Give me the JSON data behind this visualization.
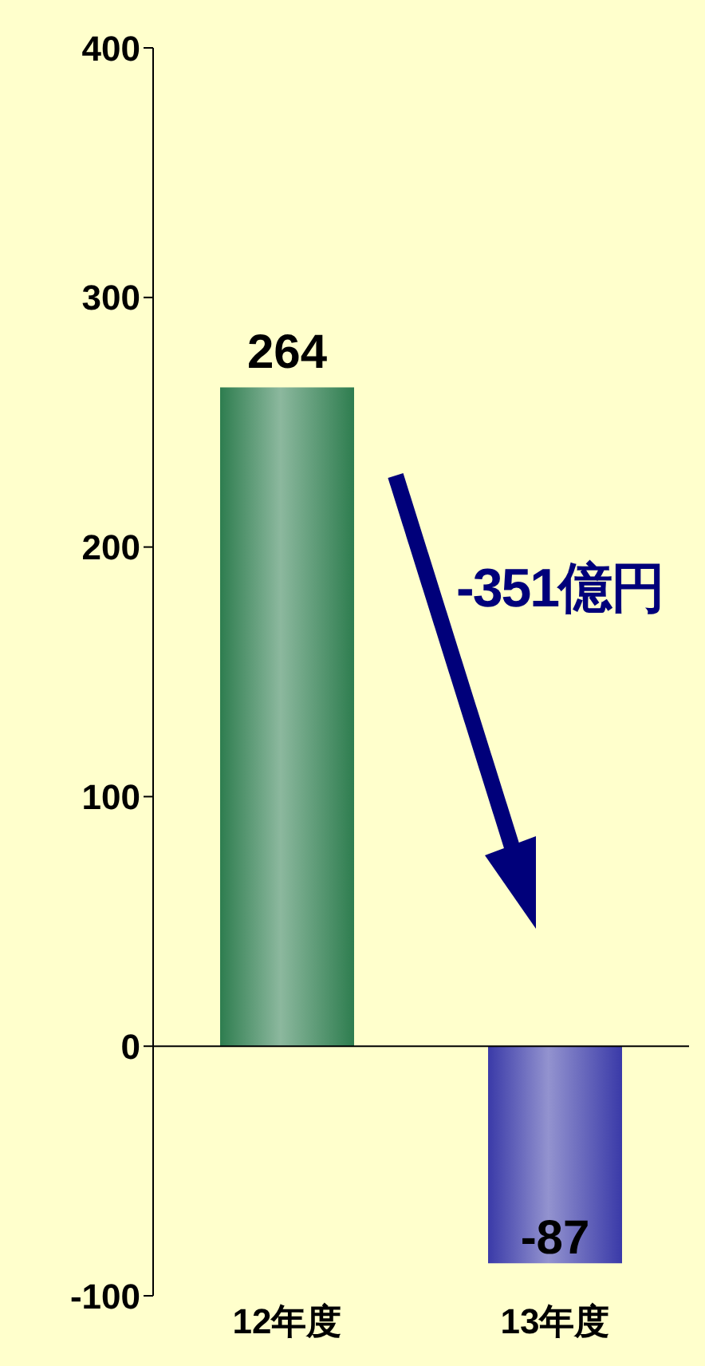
{
  "chart_data": {
    "type": "bar",
    "categories": [
      "12年度",
      "13年度"
    ],
    "values": [
      264,
      -87
    ],
    "colors": [
      "#2e7d4f",
      "#3a3aa8"
    ],
    "ylim": [
      -100,
      400
    ],
    "yticks": [
      -100,
      0,
      100,
      200,
      300,
      400
    ],
    "data_labels": true,
    "ref_lines": [
      {
        "axis": "y",
        "value": 0,
        "color": "#000000"
      }
    ],
    "annotations": [
      "-351億円"
    ]
  }
}
